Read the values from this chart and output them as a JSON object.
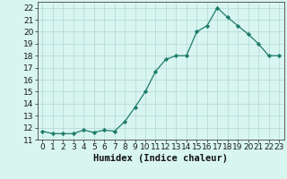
{
  "x": [
    0,
    1,
    2,
    3,
    4,
    5,
    6,
    7,
    8,
    9,
    10,
    11,
    12,
    13,
    14,
    15,
    16,
    17,
    18,
    19,
    20,
    21,
    22,
    23
  ],
  "y": [
    11.7,
    11.5,
    11.5,
    11.5,
    11.8,
    11.6,
    11.8,
    11.7,
    12.5,
    13.7,
    15.0,
    16.7,
    17.7,
    18.0,
    18.0,
    20.0,
    20.5,
    22.0,
    21.2,
    20.5,
    19.8,
    19.0,
    18.0,
    18.0
  ],
  "line_color": "#1e7b6a",
  "marker": "D",
  "marker_size": 2.2,
  "line_width": 0.9,
  "background_color": "#d8f5f0",
  "grid_color": "#b0d8d4",
  "xlabel": "Humidex (Indice chaleur)",
  "ylabel": "",
  "xlim": [
    -0.5,
    23.5
  ],
  "ylim": [
    11,
    22.5
  ],
  "yticks": [
    11,
    12,
    13,
    14,
    15,
    16,
    17,
    18,
    19,
    20,
    21,
    22
  ],
  "xtick_labels": [
    "0",
    "1",
    "2",
    "3",
    "4",
    "5",
    "6",
    "7",
    "8",
    "9",
    "10",
    "11",
    "12",
    "13",
    "14",
    "15",
    "16",
    "17",
    "18",
    "19",
    "20",
    "21",
    "22",
    "23"
  ],
  "xlabel_fontsize": 7.5,
  "tick_fontsize": 6.5
}
